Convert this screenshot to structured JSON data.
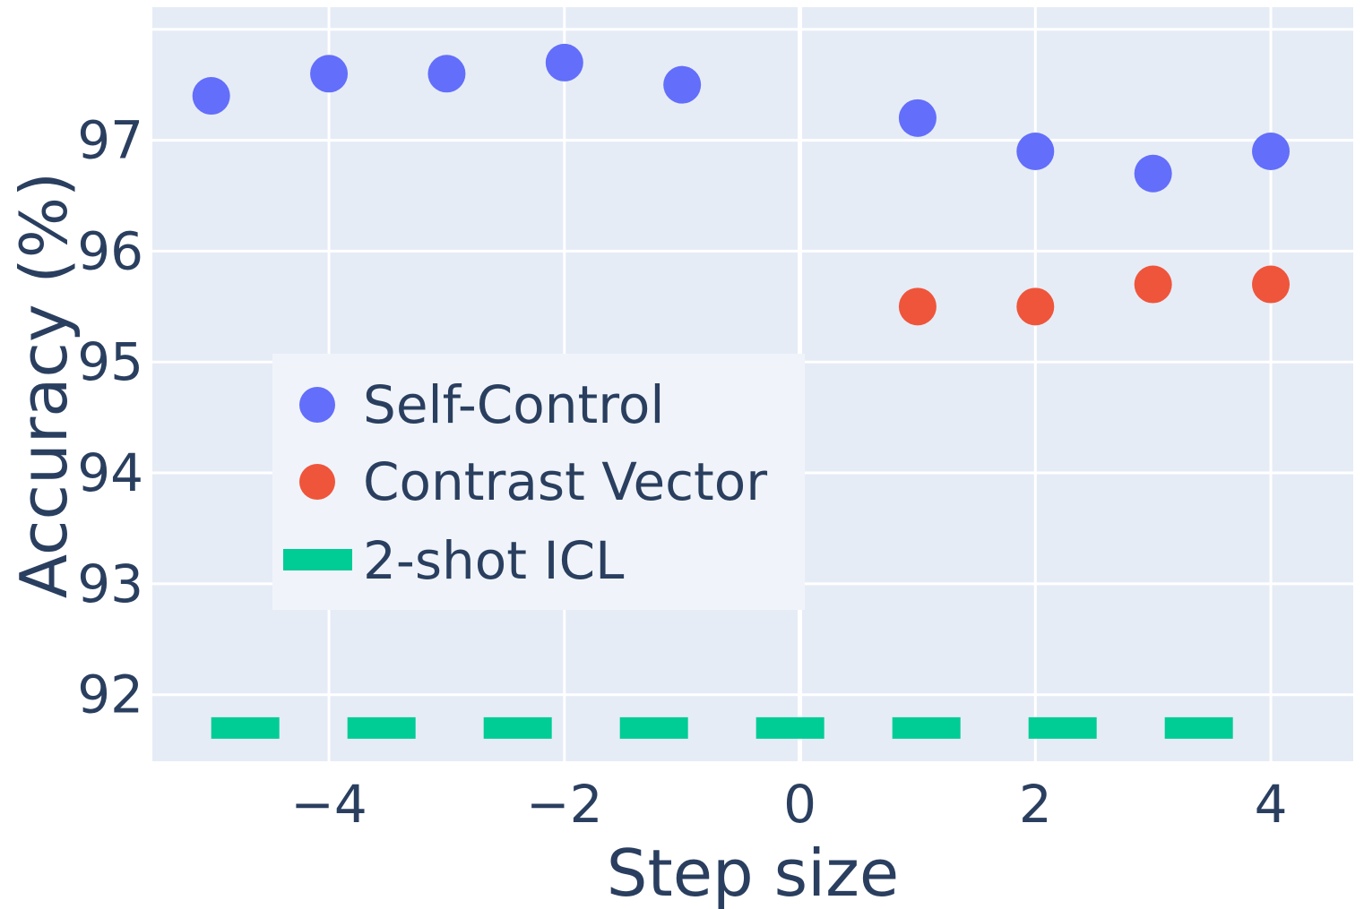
{
  "chart_data": {
    "type": "scatter",
    "title": "",
    "xlabel": "Step size",
    "ylabel": "Accuracy (%)",
    "xlim": [
      -5.5,
      4.7
    ],
    "ylim": [
      91.4,
      98.2
    ],
    "x_ticks": [
      -4,
      -2,
      0,
      2,
      4
    ],
    "x_tick_labels": [
      "−4",
      "−2",
      "0",
      "2",
      "4"
    ],
    "y_ticks": [
      92,
      93,
      94,
      95,
      96,
      97
    ],
    "y_tick_labels": [
      "92",
      "93",
      "94",
      "95",
      "96",
      "97"
    ],
    "grid": true,
    "legend_position": "center-left",
    "series": [
      {
        "name": "Self-Control",
        "mode": "markers",
        "color": "#636efa",
        "x": [
          -5,
          -4,
          -3,
          -2,
          -1,
          1,
          2,
          3,
          4
        ],
        "y": [
          97.4,
          97.6,
          97.6,
          97.7,
          97.5,
          97.2,
          96.9,
          96.7,
          96.9
        ]
      },
      {
        "name": "Contrast Vector",
        "mode": "markers",
        "color": "#ef553b",
        "x": [
          1,
          2,
          3,
          4
        ],
        "y": [
          95.5,
          95.5,
          95.7,
          95.7
        ]
      },
      {
        "name": "2-shot ICL",
        "mode": "dashed-line",
        "color": "#00cc96",
        "x": [
          -5,
          4
        ],
        "y": [
          91.7,
          91.7
        ]
      }
    ],
    "colors": {
      "plot_background": "#e5ecf6",
      "grid": "#ffffff",
      "legend_background": "#f0f4fa",
      "text": "#2a3f5f"
    }
  }
}
